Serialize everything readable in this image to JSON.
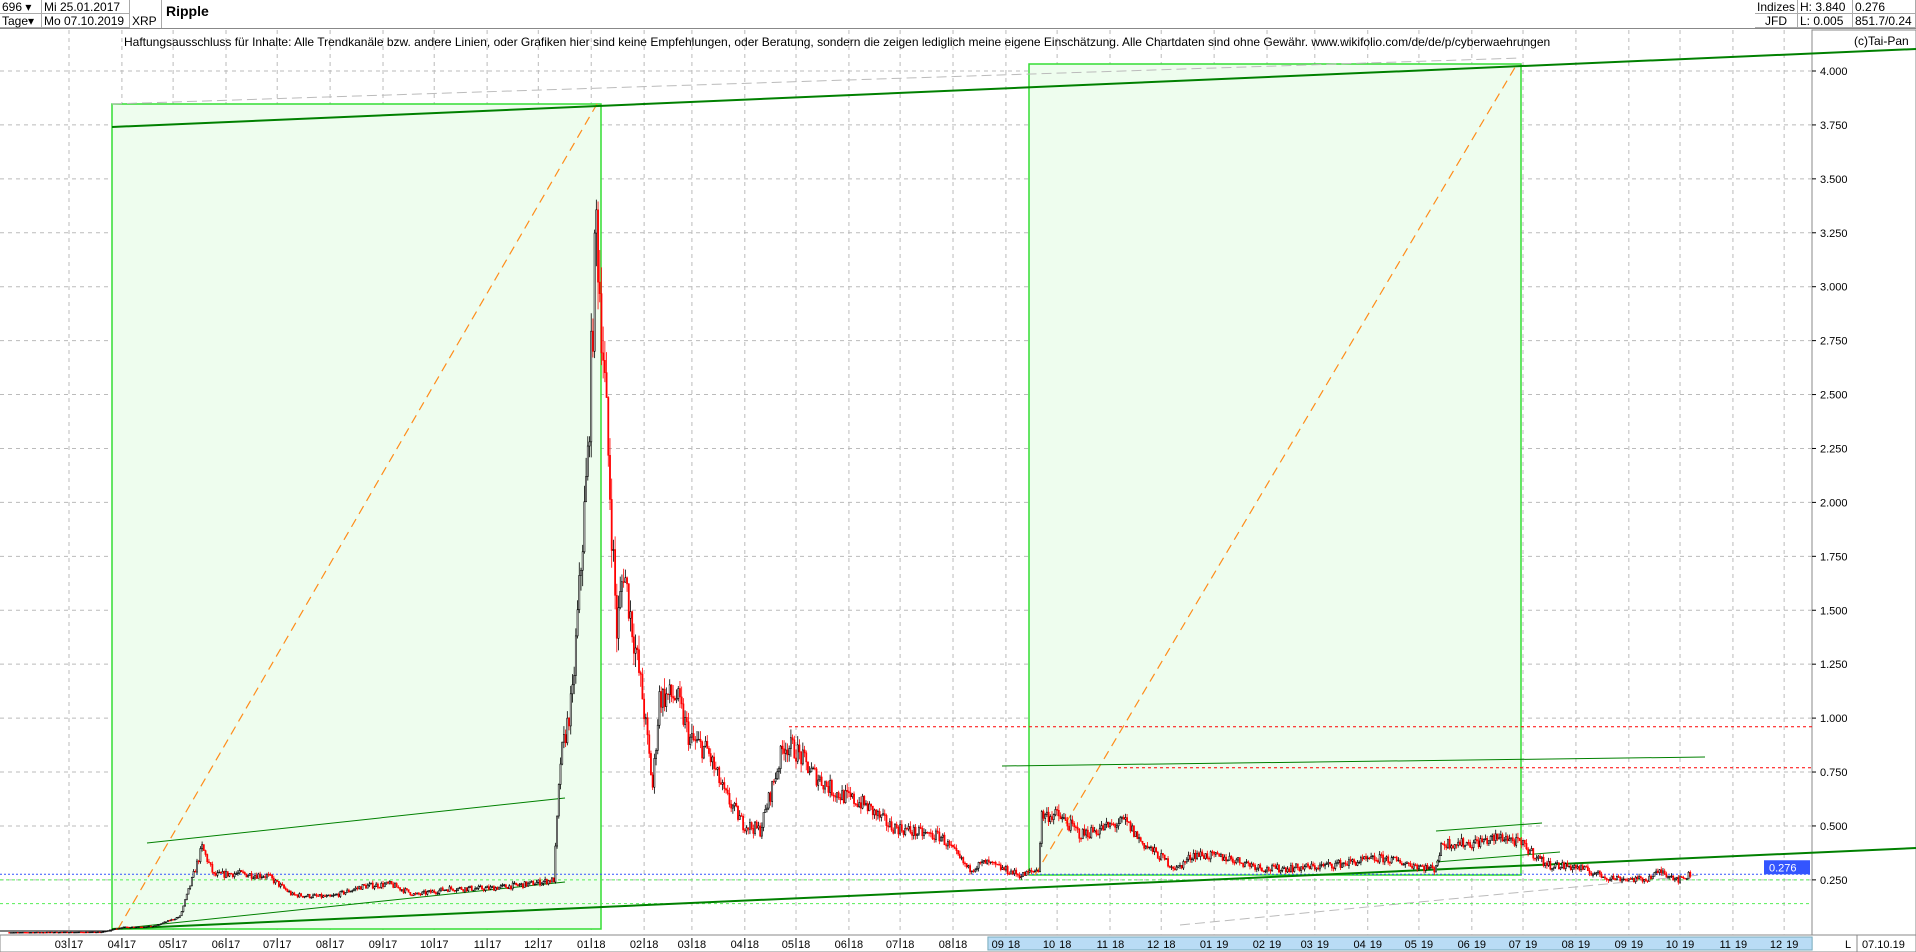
{
  "header": {
    "bars": "696",
    "period": "Tage",
    "date_from": "Mi 25.01.2017",
    "date_to": "Mo 07.10.2019",
    "symbol": "XRP",
    "title": "Ripple",
    "market": "Indizes",
    "source": "JFD",
    "high": "H: 3.840",
    "low": "L: 0.005",
    "last": "0.276",
    "volume": "851.7/0.24"
  },
  "disclaimer": "Haftungsausschluss für Inhalte: Alle Trendkanäle bzw. andere Linien, oder Grafiken hier sind keine Empfehlungen, oder Beratung, sondern die zeigen lediglich meine eigene Einschätzung. Alle Chartdaten sind ohne Gewähr.  www.wikifolio.com/de/de/p/cyberwaehrungen",
  "copyright": "(c)Tai-Pan",
  "colors": {
    "up": "#000000",
    "down": "#ff0000",
    "box_fill": "#eefdee",
    "box_edge": "#33dd33",
    "trend": "#008000",
    "diag": "#ff8c1a",
    "resist": "#ff0000",
    "last": "#3355ff"
  },
  "chart_data": {
    "type": "candlestick",
    "title": "Ripple",
    "yaxis_ticks": [
      "0.250",
      "0.500",
      "0.750",
      "1.000",
      "1.250",
      "1.500",
      "1.750",
      "2.000",
      "2.250",
      "2.500",
      "2.750",
      "3.000",
      "3.250",
      "3.500",
      "3.750",
      "4.000"
    ],
    "ylim": [
      0,
      4.1
    ],
    "xaxis_ticks": [
      [
        "03",
        "17"
      ],
      [
        "04",
        "17"
      ],
      [
        "05",
        "17"
      ],
      [
        "06",
        "17"
      ],
      [
        "07",
        "17"
      ],
      [
        "08",
        "17"
      ],
      [
        "09",
        "17"
      ],
      [
        "10",
        "17"
      ],
      [
        "11",
        "17"
      ],
      [
        "12",
        "17"
      ],
      [
        "01",
        "18"
      ],
      [
        "02",
        "18"
      ],
      [
        "03",
        "18"
      ],
      [
        "04",
        "18"
      ],
      [
        "05",
        "18"
      ],
      [
        "06",
        "18"
      ],
      [
        "07",
        "18"
      ],
      [
        "08",
        "18"
      ],
      [
        "09",
        "18"
      ],
      [
        "10",
        "18"
      ],
      [
        "11",
        "18"
      ],
      [
        "12",
        "18"
      ],
      [
        "01",
        "19"
      ],
      [
        "02",
        "19"
      ],
      [
        "03",
        "19"
      ],
      [
        "04",
        "19"
      ],
      [
        "05",
        "19"
      ],
      [
        "06",
        "19"
      ],
      [
        "07",
        "19"
      ],
      [
        "08",
        "19"
      ],
      [
        "09",
        "19"
      ],
      [
        "10",
        "19"
      ],
      [
        "11",
        "19"
      ],
      [
        "12",
        "19"
      ]
    ],
    "last_date": "07.10.19",
    "axis_mode": "L",
    "last_price": 0.276,
    "grid": true,
    "close_path": [
      [
        "2017-01-25",
        0.0065
      ],
      [
        "2017-03-20",
        0.008
      ],
      [
        "2017-04-01",
        0.03
      ],
      [
        "2017-04-20",
        0.035
      ],
      [
        "2017-05-05",
        0.08
      ],
      [
        "2017-05-10",
        0.2
      ],
      [
        "2017-05-18",
        0.4
      ],
      [
        "2017-05-25",
        0.27
      ],
      [
        "2017-06-05",
        0.28
      ],
      [
        "2017-06-25",
        0.27
      ],
      [
        "2017-07-10",
        0.18
      ],
      [
        "2017-08-01",
        0.17
      ],
      [
        "2017-08-20",
        0.22
      ],
      [
        "2017-09-05",
        0.23
      ],
      [
        "2017-09-20",
        0.18
      ],
      [
        "2017-10-10",
        0.21
      ],
      [
        "2017-11-01",
        0.21
      ],
      [
        "2017-11-25",
        0.23
      ],
      [
        "2017-12-10",
        0.25
      ],
      [
        "2017-12-14",
        0.8
      ],
      [
        "2017-12-21",
        1.1
      ],
      [
        "2017-12-30",
        2.2
      ],
      [
        "2018-01-04",
        3.3
      ],
      [
        "2018-01-08",
        2.7
      ],
      [
        "2018-01-16",
        1.4
      ],
      [
        "2018-01-20",
        1.7
      ],
      [
        "2018-01-31",
        1.1
      ],
      [
        "2018-02-06",
        0.68
      ],
      [
        "2018-02-10",
        1.1
      ],
      [
        "2018-02-20",
        1.1
      ],
      [
        "2018-02-28",
        0.9
      ],
      [
        "2018-03-10",
        0.85
      ],
      [
        "2018-03-20",
        0.65
      ],
      [
        "2018-03-31",
        0.51
      ],
      [
        "2018-04-10",
        0.48
      ],
      [
        "2018-04-24",
        0.88
      ],
      [
        "2018-05-01",
        0.85
      ],
      [
        "2018-05-10",
        0.75
      ],
      [
        "2018-05-25",
        0.65
      ],
      [
        "2018-06-10",
        0.6
      ],
      [
        "2018-06-25",
        0.5
      ],
      [
        "2018-07-10",
        0.47
      ],
      [
        "2018-07-25",
        0.45
      ],
      [
        "2018-08-10",
        0.3
      ],
      [
        "2018-08-20",
        0.33
      ],
      [
        "2018-09-10",
        0.27
      ],
      [
        "2018-09-20",
        0.3
      ],
      [
        "2018-09-22",
        0.55
      ],
      [
        "2018-10-01",
        0.55
      ],
      [
        "2018-10-15",
        0.46
      ],
      [
        "2018-11-10",
        0.52
      ],
      [
        "2018-11-20",
        0.42
      ],
      [
        "2018-12-10",
        0.3
      ],
      [
        "2018-12-20",
        0.37
      ],
      [
        "2019-01-10",
        0.35
      ],
      [
        "2019-02-01",
        0.3
      ],
      [
        "2019-03-01",
        0.31
      ],
      [
        "2019-04-10",
        0.35
      ],
      [
        "2019-05-10",
        0.3
      ],
      [
        "2019-05-15",
        0.42
      ],
      [
        "2019-06-01",
        0.42
      ],
      [
        "2019-06-20",
        0.45
      ],
      [
        "2019-07-01",
        0.41
      ],
      [
        "2019-07-15",
        0.32
      ],
      [
        "2019-08-01",
        0.31
      ],
      [
        "2019-08-20",
        0.26
      ],
      [
        "2019-09-10",
        0.25
      ],
      [
        "2019-09-20",
        0.29
      ],
      [
        "2019-10-01",
        0.25
      ],
      [
        "2019-10-07",
        0.276
      ]
    ],
    "resistance_levels": [
      0.96,
      0.77
    ],
    "support_levels": [
      0.25,
      0.14
    ]
  }
}
